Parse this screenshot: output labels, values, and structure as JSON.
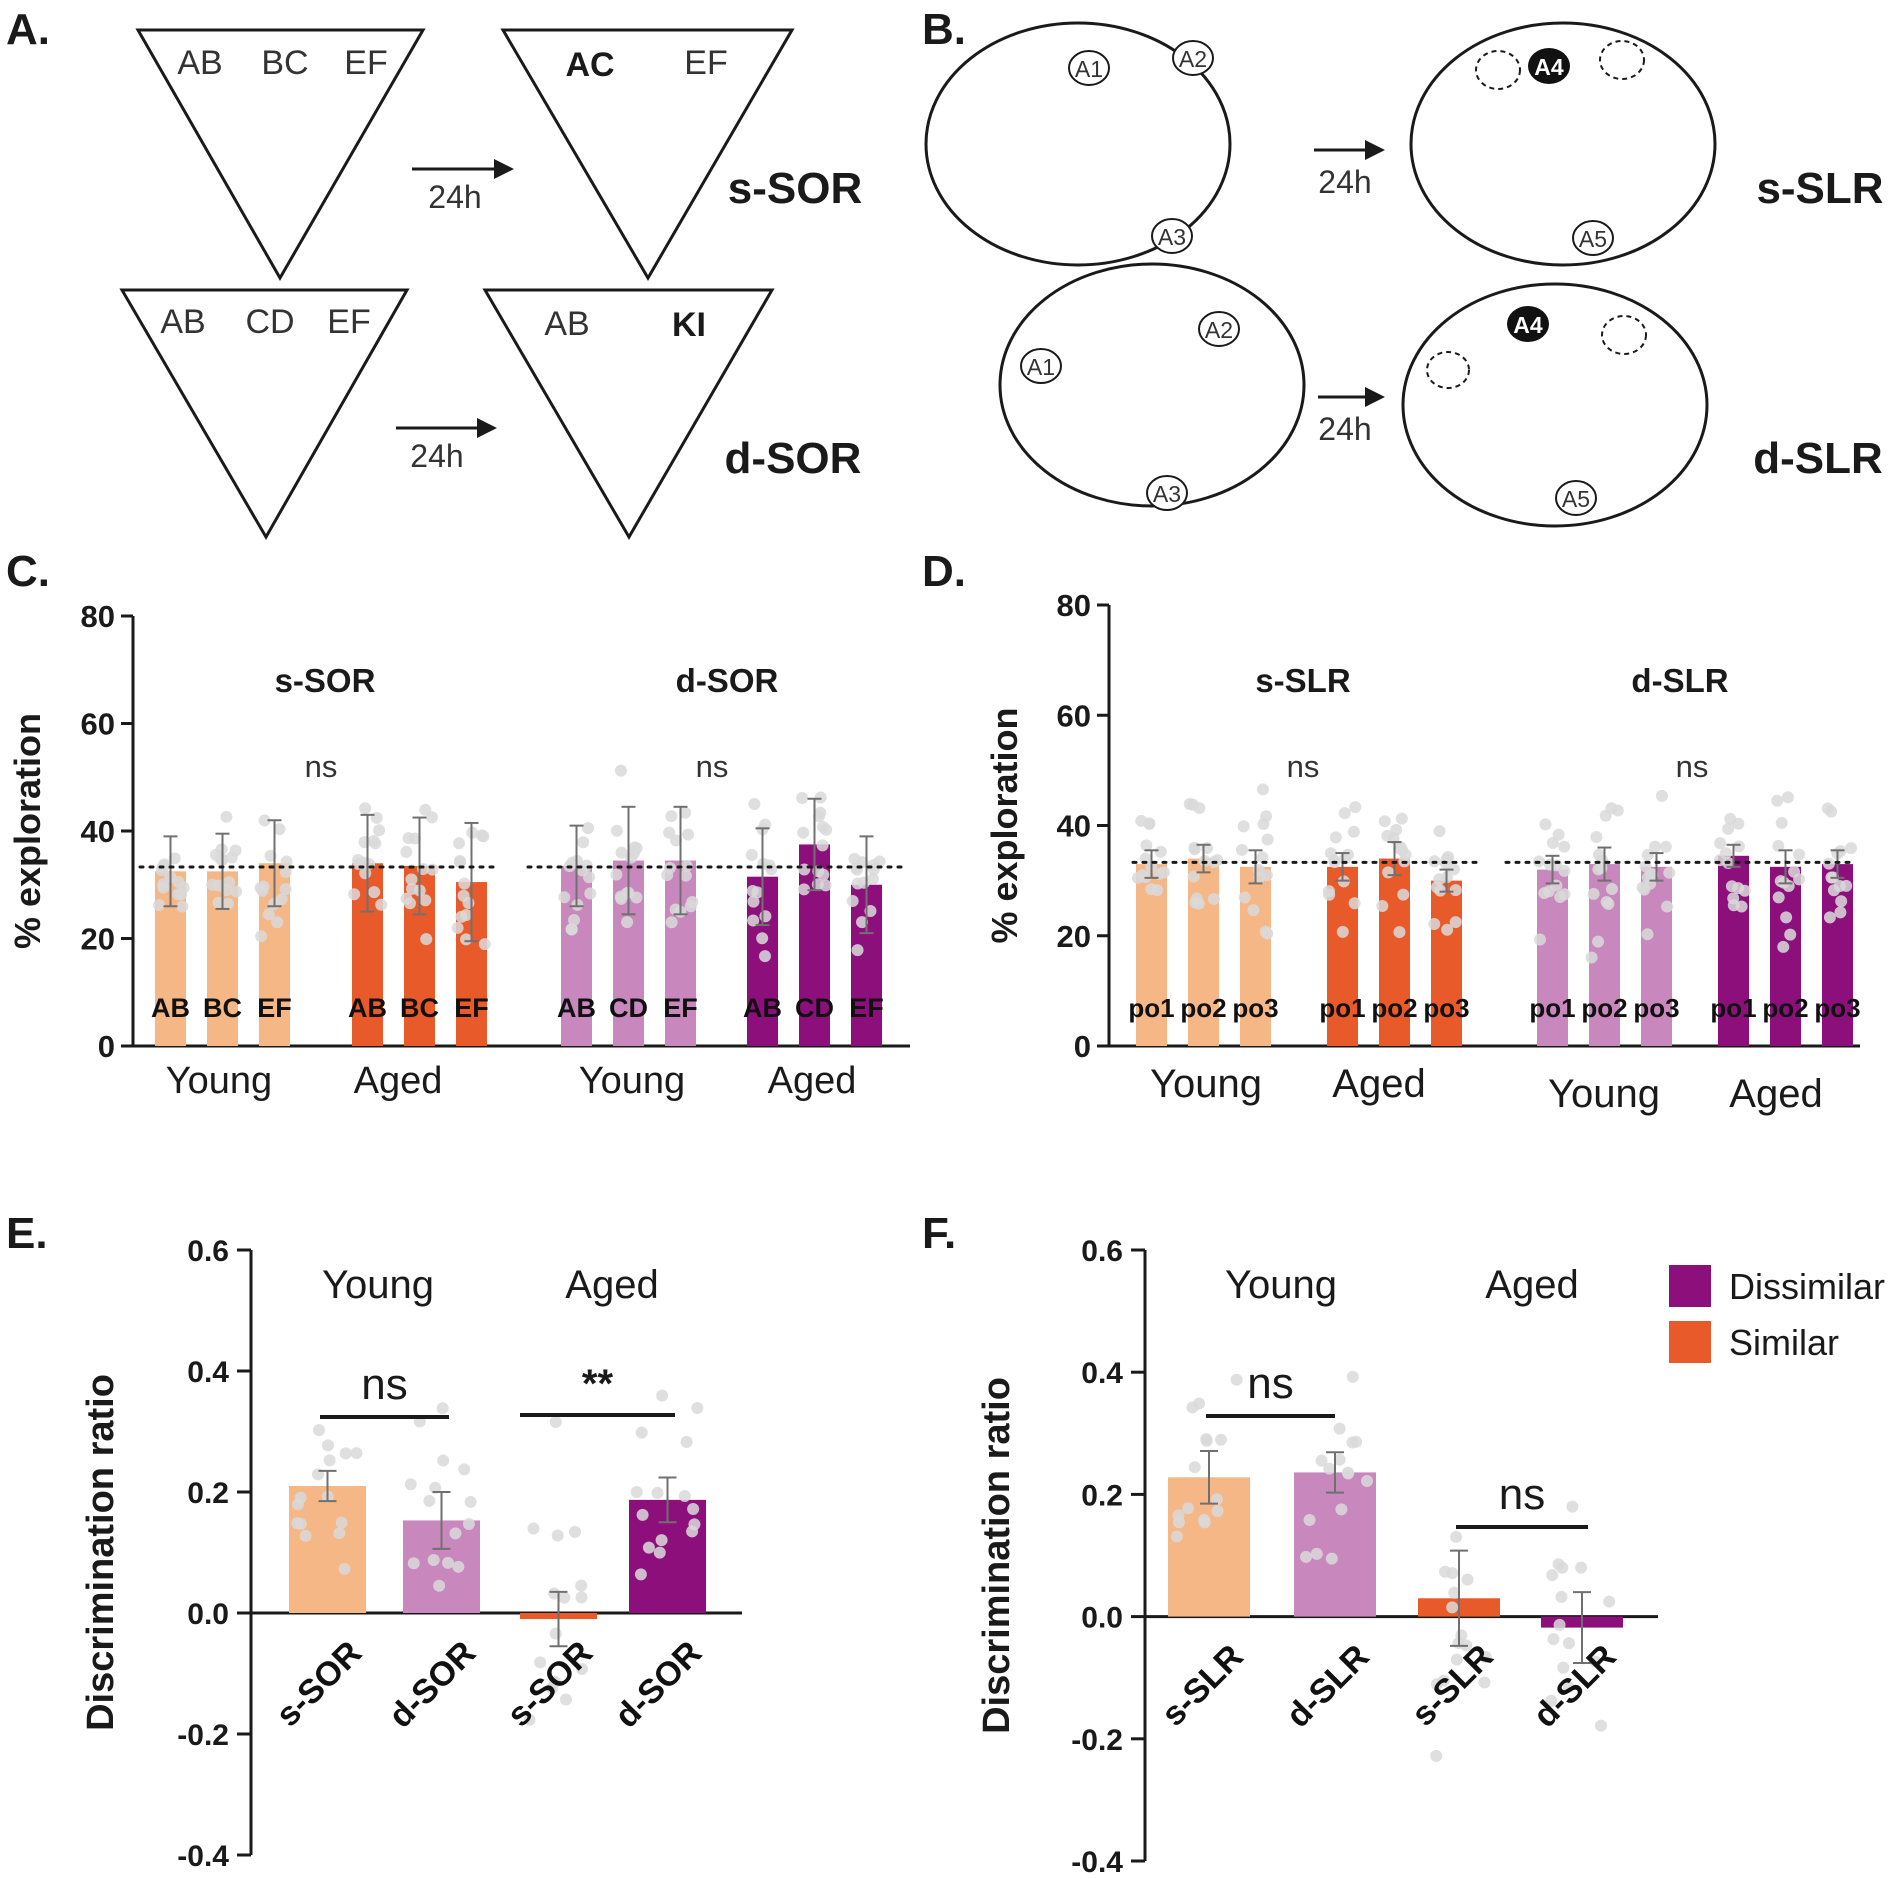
{
  "colors": {
    "young_similar": "#F4B785",
    "aged_similar": "#E85A2A",
    "young_dissimilar": "#C887BD",
    "aged_dissimilar": "#8C0F7C",
    "dots": "#d9d9d9",
    "error_bar": "#707070",
    "text": "#1a1a1a"
  },
  "panel_labels": {
    "a": "A.",
    "b": "B.",
    "c": "C.",
    "d": "D.",
    "e": "E.",
    "f": "F."
  },
  "panel_a": {
    "top_left": [
      "AB",
      "BC",
      "EF"
    ],
    "top_right": [
      "AC",
      "EF"
    ],
    "bottom_left": [
      "AB",
      "CD",
      "EF"
    ],
    "bottom_right": [
      "AB",
      "KI"
    ],
    "delay_label": "24h",
    "top_task": "s-SOR",
    "bottom_task": "d-SOR"
  },
  "panel_b": {
    "top_left_objects": [
      "A1",
      "A2",
      "A3"
    ],
    "top_right_objects": [
      "A4",
      "A5"
    ],
    "bottom_left_objects": [
      "A1",
      "A2",
      "A3"
    ],
    "bottom_right_objects": [
      "A4",
      "A5"
    ],
    "delay_label": "24h",
    "top_task": "s-SLR",
    "bottom_task": "d-SLR"
  },
  "chart_data": [
    {
      "id": "C",
      "type": "bar",
      "ylabel": "% exploration",
      "ylim": [
        0,
        80
      ],
      "yticks": [
        "0",
        "20",
        "40",
        "60",
        "80"
      ],
      "chance_line": 33.3,
      "task_titles": [
        "s-SOR",
        "d-SOR"
      ],
      "significance": [
        "ns",
        "ns"
      ],
      "group_labels": [
        "Young",
        "Aged",
        "Young",
        "Aged"
      ],
      "groups": [
        {
          "group": "Young",
          "task": "s-SOR",
          "color_key": "young_similar",
          "bars": [
            {
              "label": "AB",
              "mean": 32.5,
              "err": 6.5
            },
            {
              "label": "BC",
              "mean": 32.5,
              "err": 7.0
            },
            {
              "label": "EF",
              "mean": 34.0,
              "err": 8.0
            }
          ]
        },
        {
          "group": "Aged",
          "task": "s-SOR",
          "color_key": "aged_similar",
          "bars": [
            {
              "label": "AB",
              "mean": 34.0,
              "err": 9.0
            },
            {
              "label": "BC",
              "mean": 33.5,
              "err": 9.0
            },
            {
              "label": "EF",
              "mean": 30.5,
              "err": 11.0
            }
          ]
        },
        {
          "group": "Young",
          "task": "d-SOR",
          "color_key": "young_dissimilar",
          "bars": [
            {
              "label": "AB",
              "mean": 33.5,
              "err": 7.5
            },
            {
              "label": "CD",
              "mean": 34.5,
              "err": 10.0
            },
            {
              "label": "EF",
              "mean": 34.5,
              "err": 10.0
            }
          ]
        },
        {
          "group": "Aged",
          "task": "d-SOR",
          "color_key": "aged_dissimilar",
          "bars": [
            {
              "label": "AB",
              "mean": 31.5,
              "err": 9.0
            },
            {
              "label": "CD",
              "mean": 37.5,
              "err": 8.5
            },
            {
              "label": "EF",
              "mean": 30.0,
              "err": 9.0
            }
          ]
        }
      ]
    },
    {
      "id": "D",
      "type": "bar",
      "ylabel": "% exploration",
      "ylim": [
        0,
        80
      ],
      "yticks": [
        "0",
        "20",
        "40",
        "60",
        "80"
      ],
      "chance_line": 33.3,
      "task_titles": [
        "s-SLR",
        "d-SLR"
      ],
      "significance": [
        "ns",
        "ns"
      ],
      "group_labels": [
        "Young",
        "Aged",
        "Young",
        "Aged"
      ],
      "groups": [
        {
          "group": "Young",
          "task": "s-SLR",
          "color_key": "young_similar",
          "bars": [
            {
              "label": "po1",
              "mean": 33.0,
              "err": 2.5
            },
            {
              "label": "po2",
              "mean": 34.0,
              "err": 2.5
            },
            {
              "label": "po3",
              "mean": 32.5,
              "err": 3.0
            }
          ]
        },
        {
          "group": "Aged",
          "task": "s-SLR",
          "color_key": "aged_similar",
          "bars": [
            {
              "label": "po1",
              "mean": 32.5,
              "err": 2.5
            },
            {
              "label": "po2",
              "mean": 34.0,
              "err": 3.0
            },
            {
              "label": "po3",
              "mean": 30.0,
              "err": 2.0
            }
          ]
        },
        {
          "group": "Young",
          "task": "d-SLR",
          "color_key": "young_dissimilar",
          "bars": [
            {
              "label": "po1",
              "mean": 32.0,
              "err": 2.5
            },
            {
              "label": "po2",
              "mean": 33.0,
              "err": 3.0
            },
            {
              "label": "po3",
              "mean": 32.5,
              "err": 2.5
            }
          ]
        },
        {
          "group": "Aged",
          "task": "d-SLR",
          "color_key": "aged_dissimilar",
          "bars": [
            {
              "label": "po1",
              "mean": 34.5,
              "err": 2.0
            },
            {
              "label": "po2",
              "mean": 32.5,
              "err": 3.0
            },
            {
              "label": "po3",
              "mean": 33.0,
              "err": 2.5
            }
          ]
        }
      ]
    },
    {
      "id": "E",
      "type": "bar",
      "ylabel": "Discrimination ratio",
      "ylim": [
        -0.4,
        0.6
      ],
      "yticks": [
        "-0.4",
        "-0.2",
        "0.0",
        "0.2",
        "0.4",
        "0.6"
      ],
      "group_titles": [
        "Young",
        "Aged"
      ],
      "significance": [
        "ns",
        "**"
      ],
      "bars": [
        {
          "label": "s-SOR",
          "group": "Young",
          "color_key": "young_similar",
          "mean": 0.21,
          "err": 0.025
        },
        {
          "label": "d-SOR",
          "group": "Young",
          "color_key": "young_dissimilar",
          "mean": 0.153,
          "err": 0.047
        },
        {
          "label": "s-SOR",
          "group": "Aged",
          "color_key": "aged_similar",
          "mean": -0.01,
          "err": 0.045
        },
        {
          "label": "d-SOR",
          "group": "Aged",
          "color_key": "aged_dissimilar",
          "mean": 0.187,
          "err": 0.037
        }
      ]
    },
    {
      "id": "F",
      "type": "bar",
      "ylabel": "Discrimination ratio",
      "ylim": [
        -0.4,
        0.6
      ],
      "yticks": [
        "-0.4",
        "-0.2",
        "0.0",
        "0.2",
        "0.4",
        "0.6"
      ],
      "group_titles": [
        "Young",
        "Aged"
      ],
      "significance": [
        "ns",
        "ns"
      ],
      "legend": [
        {
          "label": "Dissimilar",
          "color_key": "aged_dissimilar"
        },
        {
          "label": "Similar",
          "color_key": "aged_similar"
        }
      ],
      "bars": [
        {
          "label": "s-SLR",
          "group": "Young",
          "color_key": "young_similar",
          "mean": 0.228,
          "err": 0.043
        },
        {
          "label": "d-SLR",
          "group": "Young",
          "color_key": "young_dissimilar",
          "mean": 0.236,
          "err": 0.033
        },
        {
          "label": "s-SLR",
          "group": "Aged",
          "color_key": "aged_similar",
          "mean": 0.03,
          "err": 0.078
        },
        {
          "label": "d-SLR",
          "group": "Aged",
          "color_key": "aged_dissimilar",
          "mean": -0.018,
          "err": 0.058
        }
      ]
    }
  ]
}
